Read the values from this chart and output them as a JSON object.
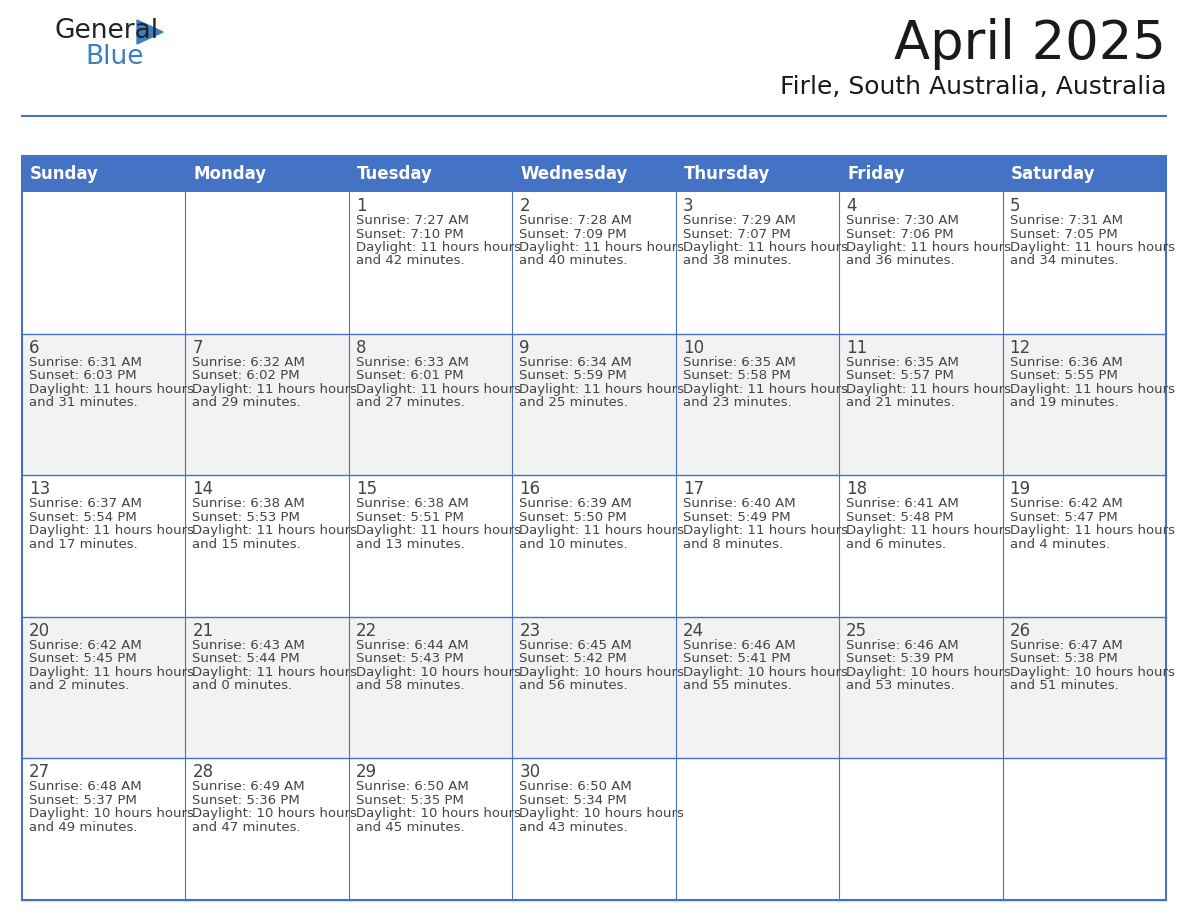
{
  "title": "April 2025",
  "subtitle": "Firle, South Australia, Australia",
  "days_of_week": [
    "Sunday",
    "Monday",
    "Tuesday",
    "Wednesday",
    "Thursday",
    "Friday",
    "Saturday"
  ],
  "header_bg": "#4472C4",
  "header_text": "#FFFFFF",
  "cell_bg_even": "#FFFFFF",
  "cell_bg_odd": "#F2F2F2",
  "border_color": "#4472C4",
  "text_color": "#444444",
  "logo_color_general": "#222222",
  "logo_color_blue": "#3a7fc1",
  "logo_triangle_color": "#3a7fc1",
  "calendar": [
    [
      {
        "day": "",
        "sunrise": "",
        "sunset": "",
        "daylight": ""
      },
      {
        "day": "",
        "sunrise": "",
        "sunset": "",
        "daylight": ""
      },
      {
        "day": "1",
        "sunrise": "7:27 AM",
        "sunset": "7:10 PM",
        "daylight": "11 hours and 42 minutes."
      },
      {
        "day": "2",
        "sunrise": "7:28 AM",
        "sunset": "7:09 PM",
        "daylight": "11 hours and 40 minutes."
      },
      {
        "day": "3",
        "sunrise": "7:29 AM",
        "sunset": "7:07 PM",
        "daylight": "11 hours and 38 minutes."
      },
      {
        "day": "4",
        "sunrise": "7:30 AM",
        "sunset": "7:06 PM",
        "daylight": "11 hours and 36 minutes."
      },
      {
        "day": "5",
        "sunrise": "7:31 AM",
        "sunset": "7:05 PM",
        "daylight": "11 hours and 34 minutes."
      }
    ],
    [
      {
        "day": "6",
        "sunrise": "6:31 AM",
        "sunset": "6:03 PM",
        "daylight": "11 hours and 31 minutes."
      },
      {
        "day": "7",
        "sunrise": "6:32 AM",
        "sunset": "6:02 PM",
        "daylight": "11 hours and 29 minutes."
      },
      {
        "day": "8",
        "sunrise": "6:33 AM",
        "sunset": "6:01 PM",
        "daylight": "11 hours and 27 minutes."
      },
      {
        "day": "9",
        "sunrise": "6:34 AM",
        "sunset": "5:59 PM",
        "daylight": "11 hours and 25 minutes."
      },
      {
        "day": "10",
        "sunrise": "6:35 AM",
        "sunset": "5:58 PM",
        "daylight": "11 hours and 23 minutes."
      },
      {
        "day": "11",
        "sunrise": "6:35 AM",
        "sunset": "5:57 PM",
        "daylight": "11 hours and 21 minutes."
      },
      {
        "day": "12",
        "sunrise": "6:36 AM",
        "sunset": "5:55 PM",
        "daylight": "11 hours and 19 minutes."
      }
    ],
    [
      {
        "day": "13",
        "sunrise": "6:37 AM",
        "sunset": "5:54 PM",
        "daylight": "11 hours and 17 minutes."
      },
      {
        "day": "14",
        "sunrise": "6:38 AM",
        "sunset": "5:53 PM",
        "daylight": "11 hours and 15 minutes."
      },
      {
        "day": "15",
        "sunrise": "6:38 AM",
        "sunset": "5:51 PM",
        "daylight": "11 hours and 13 minutes."
      },
      {
        "day": "16",
        "sunrise": "6:39 AM",
        "sunset": "5:50 PM",
        "daylight": "11 hours and 10 minutes."
      },
      {
        "day": "17",
        "sunrise": "6:40 AM",
        "sunset": "5:49 PM",
        "daylight": "11 hours and 8 minutes."
      },
      {
        "day": "18",
        "sunrise": "6:41 AM",
        "sunset": "5:48 PM",
        "daylight": "11 hours and 6 minutes."
      },
      {
        "day": "19",
        "sunrise": "6:42 AM",
        "sunset": "5:47 PM",
        "daylight": "11 hours and 4 minutes."
      }
    ],
    [
      {
        "day": "20",
        "sunrise": "6:42 AM",
        "sunset": "5:45 PM",
        "daylight": "11 hours and 2 minutes."
      },
      {
        "day": "21",
        "sunrise": "6:43 AM",
        "sunset": "5:44 PM",
        "daylight": "11 hours and 0 minutes."
      },
      {
        "day": "22",
        "sunrise": "6:44 AM",
        "sunset": "5:43 PM",
        "daylight": "10 hours and 58 minutes."
      },
      {
        "day": "23",
        "sunrise": "6:45 AM",
        "sunset": "5:42 PM",
        "daylight": "10 hours and 56 minutes."
      },
      {
        "day": "24",
        "sunrise": "6:46 AM",
        "sunset": "5:41 PM",
        "daylight": "10 hours and 55 minutes."
      },
      {
        "day": "25",
        "sunrise": "6:46 AM",
        "sunset": "5:39 PM",
        "daylight": "10 hours and 53 minutes."
      },
      {
        "day": "26",
        "sunrise": "6:47 AM",
        "sunset": "5:38 PM",
        "daylight": "10 hours and 51 minutes."
      }
    ],
    [
      {
        "day": "27",
        "sunrise": "6:48 AM",
        "sunset": "5:37 PM",
        "daylight": "10 hours and 49 minutes."
      },
      {
        "day": "28",
        "sunrise": "6:49 AM",
        "sunset": "5:36 PM",
        "daylight": "10 hours and 47 minutes."
      },
      {
        "day": "29",
        "sunrise": "6:50 AM",
        "sunset": "5:35 PM",
        "daylight": "10 hours and 45 minutes."
      },
      {
        "day": "30",
        "sunrise": "6:50 AM",
        "sunset": "5:34 PM",
        "daylight": "10 hours and 43 minutes."
      },
      {
        "day": "",
        "sunrise": "",
        "sunset": "",
        "daylight": ""
      },
      {
        "day": "",
        "sunrise": "",
        "sunset": "",
        "daylight": ""
      },
      {
        "day": "",
        "sunrise": "",
        "sunset": "",
        "daylight": ""
      }
    ]
  ]
}
